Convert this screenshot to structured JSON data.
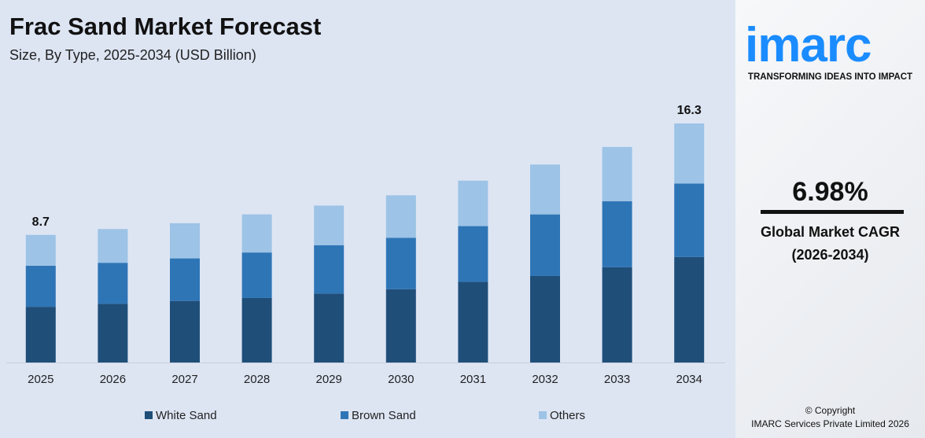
{
  "chart_data": {
    "type": "stacked_bar",
    "title": "Frac Sand Market Forecast",
    "subtitle": "Size, By Type, 2025-2034 (USD Billion)",
    "categories": [
      "2025",
      "2026",
      "2027",
      "2028",
      "2029",
      "2030",
      "2031",
      "2032",
      "2033",
      "2034"
    ],
    "series": [
      {
        "name": "White Sand",
        "color": "#1f4e79",
        "values": [
          3.8,
          4.0,
          4.2,
          4.4,
          4.7,
          5.0,
          5.5,
          5.9,
          6.5,
          7.2
        ]
      },
      {
        "name": "Brown Sand",
        "color": "#2e75b6",
        "values": [
          2.8,
          2.8,
          2.9,
          3.1,
          3.3,
          3.5,
          3.8,
          4.2,
          4.5,
          5.0
        ]
      },
      {
        "name": "Others",
        "color": "#9dc3e6",
        "values": [
          2.1,
          2.3,
          2.4,
          2.6,
          2.7,
          2.9,
          3.1,
          3.4,
          3.7,
          4.1
        ]
      }
    ],
    "totals": [
      8.7,
      null,
      null,
      null,
      null,
      null,
      null,
      null,
      null,
      16.3
    ],
    "legend": "bottom"
  },
  "sidebar": {
    "logo": "imarc",
    "tagline": "TRANSFORMING IDEAS INTO IMPACT",
    "cagr": "6.98%",
    "cagr_label": "Global Market CAGR",
    "cagr_period": "(2026-2034)",
    "copyright": "© Copyright",
    "company": "IMARC Services Private Limited 2026"
  }
}
